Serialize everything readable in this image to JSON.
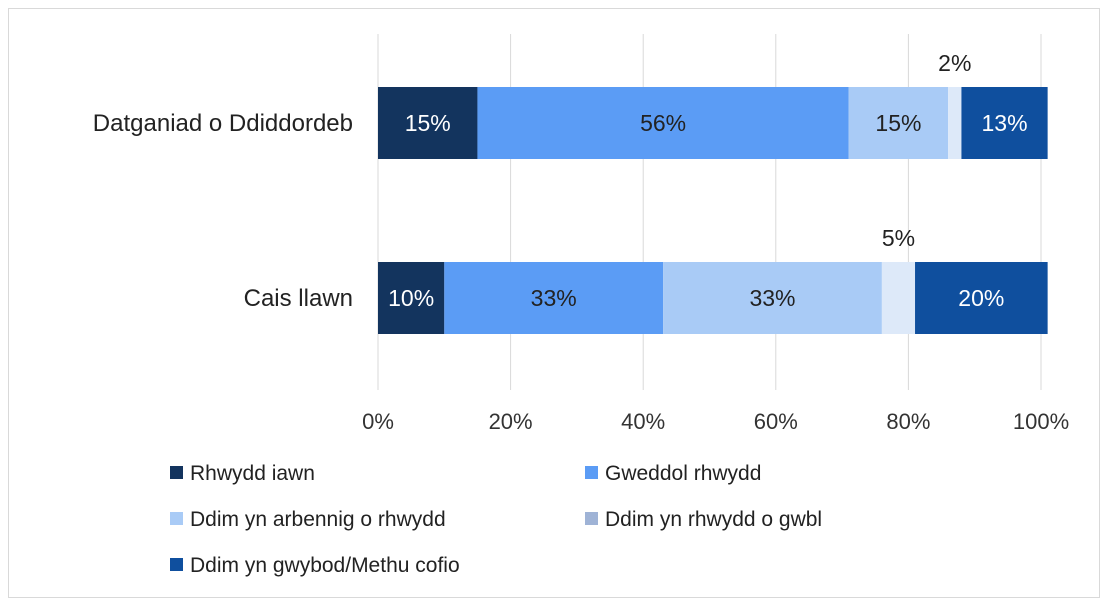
{
  "chart_data": {
    "type": "bar",
    "orientation": "horizontal",
    "stacked": true,
    "categories": [
      "Datganiad o Ddiddordeb",
      "Cais llawn"
    ],
    "series": [
      {
        "name": "Rhwydd iawn",
        "color": "#13345e",
        "label_color": "#ffffff",
        "values": [
          15,
          10
        ],
        "labels": [
          "15%",
          "10%"
        ]
      },
      {
        "name": "Gweddol rhwydd",
        "color": "#5b9cf5",
        "label_color": "#222222",
        "values": [
          56,
          33
        ],
        "labels": [
          "56%",
          "33%"
        ]
      },
      {
        "name": "Ddim yn arbennig o rhwydd",
        "color": "#a9cbf6",
        "label_color": "#222222",
        "values": [
          15,
          33
        ],
        "labels": [
          "15%",
          "33%"
        ]
      },
      {
        "name": "Ddim yn rhwydd o gwbl",
        "color": "#dde9f9",
        "label_color": "#222222",
        "values": [
          2,
          5
        ],
        "labels": [
          "2%",
          "5%"
        ],
        "label_position": "above"
      },
      {
        "name": "Ddim yn gwybod/Methu cofio",
        "color": "#0f4f9e",
        "label_color": "#ffffff",
        "values": [
          13,
          20
        ],
        "labels": [
          "13%",
          "20%"
        ]
      }
    ],
    "xlim": [
      0,
      100
    ],
    "x_ticks": [
      "0%",
      "20%",
      "40%",
      "60%",
      "80%",
      "100%"
    ],
    "grid": "vertical",
    "legend_position": "bottom",
    "legend_markers": {
      "Ddim yn rhwydd o gwbl": "#9fb3d6"
    }
  }
}
